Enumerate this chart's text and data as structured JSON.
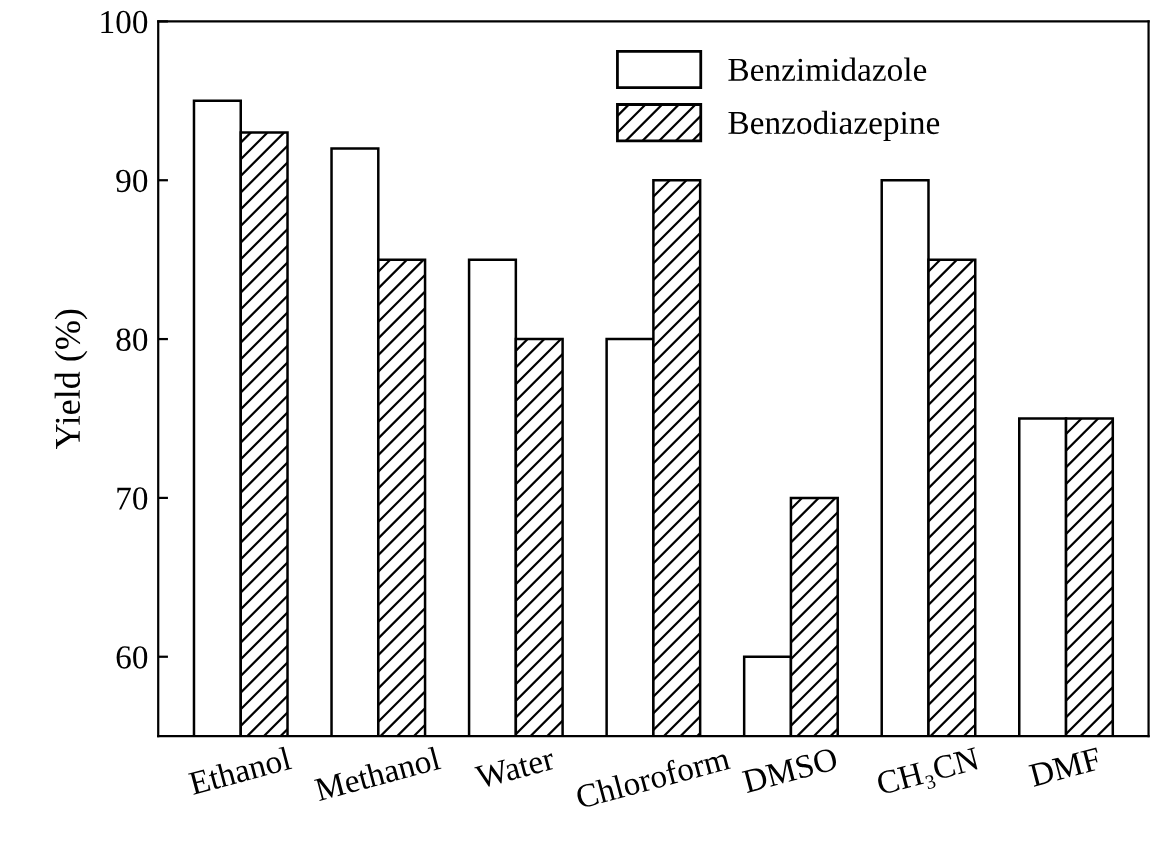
{
  "chart_data": {
    "type": "bar",
    "ylabel": "Yield (%)",
    "categories": [
      "Ethanol",
      "Methanol",
      "Water",
      "Chloroform",
      "DMSO",
      "CH₃CN",
      "DMF"
    ],
    "series": [
      {
        "name": "Benzimidazole",
        "color": "#ffffff",
        "values": [
          95,
          92,
          85,
          80,
          60,
          90,
          75
        ]
      },
      {
        "name": "Benzodiazepine",
        "color": "#000000",
        "values": [
          93,
          85,
          80,
          90,
          70,
          85,
          75
        ]
      }
    ],
    "ylim": [
      55,
      100
    ],
    "yticks": [
      60,
      70,
      80,
      90,
      100
    ],
    "grid": false,
    "legend": "top right"
  }
}
